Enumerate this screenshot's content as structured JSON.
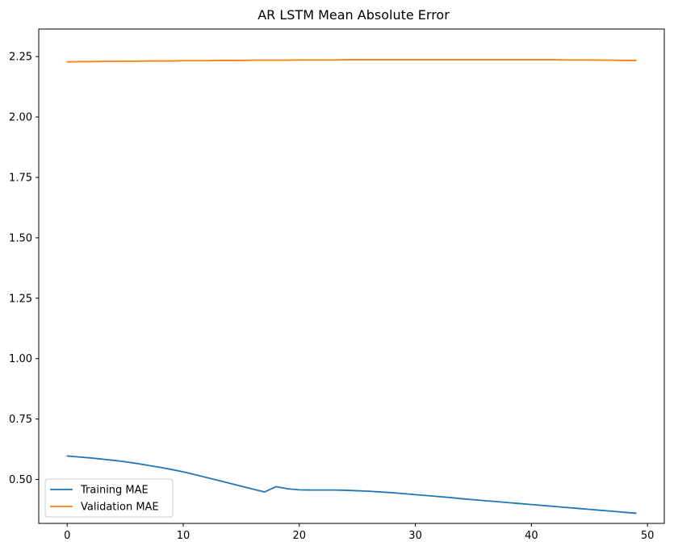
{
  "chart_data": {
    "type": "line",
    "title": "AR LSTM Mean Absolute Error",
    "xlabel": "",
    "ylabel": "",
    "xlim": [
      -2.45,
      51.45
    ],
    "ylim": [
      0.318,
      2.364
    ],
    "xticks": [
      0,
      10,
      20,
      30,
      40,
      50
    ],
    "yticks": [
      0.5,
      0.75,
      1.0,
      1.25,
      1.5,
      1.75,
      2.0,
      2.25
    ],
    "ytick_labels": [
      "0.50",
      "0.75",
      "1.00",
      "1.25",
      "1.50",
      "1.75",
      "2.00",
      "2.25"
    ],
    "xtick_labels": [
      "0",
      "10",
      "20",
      "30",
      "40",
      "50"
    ],
    "grid": false,
    "legend_position": "lower-left",
    "x": [
      0,
      1,
      2,
      3,
      4,
      5,
      6,
      7,
      8,
      9,
      10,
      11,
      12,
      13,
      14,
      15,
      16,
      17,
      18,
      19,
      20,
      21,
      22,
      23,
      24,
      25,
      26,
      27,
      28,
      29,
      30,
      31,
      32,
      33,
      34,
      35,
      36,
      37,
      38,
      39,
      40,
      41,
      42,
      43,
      44,
      45,
      46,
      47,
      48,
      49
    ],
    "series": [
      {
        "name": "Training MAE",
        "color": "#1f77b4",
        "values": [
          0.597,
          0.593,
          0.589,
          0.584,
          0.579,
          0.573,
          0.566,
          0.558,
          0.55,
          0.541,
          0.531,
          0.52,
          0.508,
          0.496,
          0.484,
          0.472,
          0.46,
          0.448,
          0.47,
          0.461,
          0.457,
          0.456,
          0.456,
          0.456,
          0.455,
          0.453,
          0.451,
          0.448,
          0.445,
          0.441,
          0.437,
          0.433,
          0.429,
          0.425,
          0.42,
          0.416,
          0.412,
          0.408,
          0.404,
          0.4,
          0.396,
          0.392,
          0.388,
          0.384,
          0.38,
          0.376,
          0.372,
          0.368,
          0.364,
          0.36
        ]
      },
      {
        "name": "Validation MAE",
        "color": "#ff7f0e",
        "values": [
          2.228,
          2.229,
          2.229,
          2.23,
          2.23,
          2.231,
          2.231,
          2.232,
          2.232,
          2.232,
          2.233,
          2.233,
          2.233,
          2.234,
          2.234,
          2.234,
          2.235,
          2.235,
          2.235,
          2.235,
          2.236,
          2.236,
          2.236,
          2.236,
          2.237,
          2.237,
          2.237,
          2.237,
          2.237,
          2.237,
          2.237,
          2.237,
          2.237,
          2.237,
          2.237,
          2.237,
          2.237,
          2.237,
          2.237,
          2.237,
          2.237,
          2.237,
          2.237,
          2.236,
          2.236,
          2.236,
          2.235,
          2.235,
          2.234,
          2.234
        ]
      }
    ]
  }
}
